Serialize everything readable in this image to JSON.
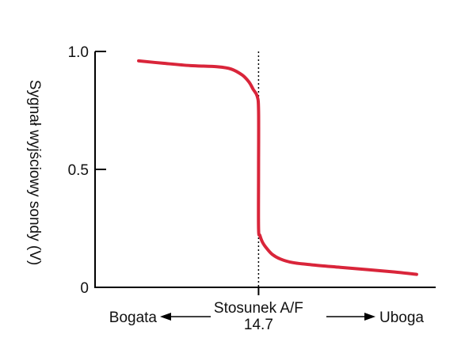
{
  "chart_data": {
    "type": "line",
    "title": "",
    "xlabel": "Stosunek A/F",
    "ylabel": "Sygnał wyjściowy sondy (V)",
    "xlim": [
      13.5,
      16.0
    ],
    "ylim": [
      0,
      1.0
    ],
    "yticks": [
      {
        "value": 0,
        "label": "0"
      },
      {
        "value": 0.5,
        "label": "0.5"
      },
      {
        "value": 1.0,
        "label": "1.0"
      }
    ],
    "xticks": [
      {
        "value": 14.7,
        "label": "14.7"
      }
    ],
    "reference_line": {
      "x": 14.7,
      "style": "dotted"
    },
    "left_annotation": "Bogata",
    "right_annotation": "Uboga",
    "grid": false,
    "series": [
      {
        "color": "#d9253a",
        "x": [
          13.82,
          14.0,
          14.2,
          14.4,
          14.5,
          14.58,
          14.63,
          14.66,
          14.69,
          14.7,
          14.7,
          14.7,
          14.71,
          14.73,
          14.76,
          14.8,
          14.86,
          14.95,
          15.1,
          15.3,
          15.5,
          15.7,
          15.86
        ],
        "y": [
          0.96,
          0.95,
          0.94,
          0.935,
          0.925,
          0.9,
          0.87,
          0.84,
          0.81,
          0.75,
          0.5,
          0.25,
          0.22,
          0.19,
          0.165,
          0.14,
          0.12,
          0.105,
          0.095,
          0.085,
          0.075,
          0.065,
          0.055
        ]
      }
    ]
  }
}
